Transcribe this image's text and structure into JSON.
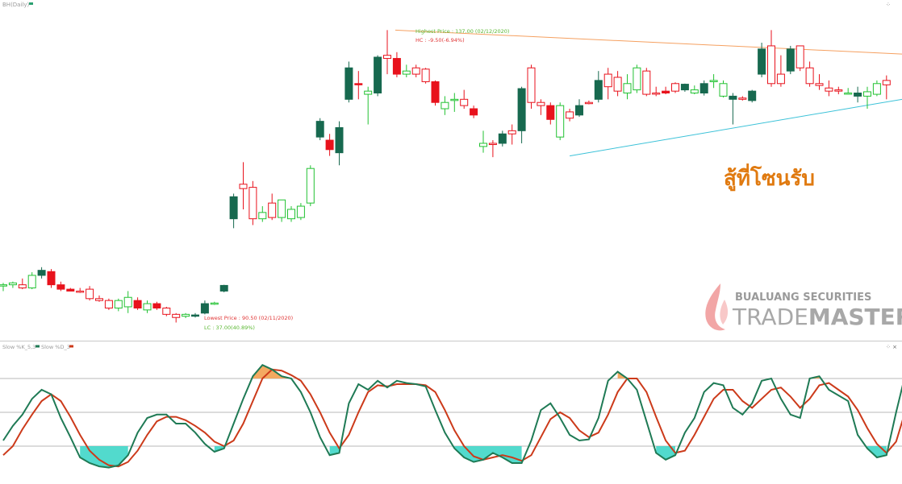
{
  "price_panel": {
    "title": "BH(Daily)",
    "highest_label": "Highest Price : 137.00 (02/12/2020)",
    "highest_change": "HC : -9.50(-6.94%)",
    "lowest_label": "Lowest Price : 90.50 (02/11/2020)",
    "lowest_change": "LC : 37.00(40.89%)",
    "annotation": "สู้ที่โซนรับ",
    "brand_top": "BUALUANG SECURITIES",
    "brand_main_a": "TRADE",
    "brand_main_b": "MASTER"
  },
  "stoch_panel": {
    "legend_k": "Slow %K_5,3",
    "legend_d": "Slow %D_3",
    "controls": "⁘ ×"
  },
  "colors": {
    "bull": "#17694f",
    "bull_hollow": "#22c232",
    "bear": "#e8121c",
    "bear_hollow": "#e8121c",
    "k_line": "#1f7a55",
    "d_line": "#cc3a1a",
    "overbought_fill": "#f2a050",
    "oversold_fill": "#3fd6c8",
    "resistance": "#f5a060",
    "support": "#3cc2d8",
    "annotation": "#e07a10"
  },
  "chart_data": [
    {
      "type": "candlestick",
      "title": "BH(Daily)",
      "ylim": [
        88,
        140
      ],
      "highest": 137.0,
      "lowest": 90.5,
      "candles": [
        {
          "o": 96.3,
          "h": 96.8,
          "l": 95.5,
          "c": 96.5,
          "s": "bull_hollow"
        },
        {
          "o": 96.5,
          "h": 97.0,
          "l": 96.0,
          "c": 96.8,
          "s": "bull_hollow"
        },
        {
          "o": 96.5,
          "h": 97.5,
          "l": 95.8,
          "c": 96.0,
          "s": "bear_hollow"
        },
        {
          "o": 96.0,
          "h": 98.5,
          "l": 95.8,
          "c": 98.0,
          "s": "bull_hollow"
        },
        {
          "o": 98.0,
          "h": 99.3,
          "l": 97.5,
          "c": 98.8,
          "s": "bull"
        },
        {
          "o": 98.6,
          "h": 99.0,
          "l": 96.0,
          "c": 96.5,
          "s": "bear"
        },
        {
          "o": 96.5,
          "h": 97.0,
          "l": 95.5,
          "c": 95.8,
          "s": "bear"
        },
        {
          "o": 95.8,
          "h": 96.0,
          "l": 95.5,
          "c": 95.5,
          "s": "bear"
        },
        {
          "o": 95.5,
          "h": 96.0,
          "l": 95.2,
          "c": 95.5,
          "s": "bear_hollow"
        },
        {
          "o": 95.8,
          "h": 96.3,
          "l": 94.0,
          "c": 94.3,
          "s": "bear_hollow"
        },
        {
          "o": 94.3,
          "h": 94.8,
          "l": 93.8,
          "c": 94.0,
          "s": "bear_hollow"
        },
        {
          "o": 94.0,
          "h": 94.3,
          "l": 92.5,
          "c": 92.8,
          "s": "bear_hollow"
        },
        {
          "o": 92.8,
          "h": 94.3,
          "l": 92.3,
          "c": 94.0,
          "s": "bull_hollow"
        },
        {
          "o": 93.0,
          "h": 95.5,
          "l": 92.0,
          "c": 94.5,
          "s": "bull_hollow"
        },
        {
          "o": 94.0,
          "h": 94.5,
          "l": 92.5,
          "c": 92.8,
          "s": "bear"
        },
        {
          "o": 92.5,
          "h": 94.0,
          "l": 92.0,
          "c": 93.5,
          "s": "bull_hollow"
        },
        {
          "o": 93.5,
          "h": 93.8,
          "l": 92.5,
          "c": 92.8,
          "s": "bear"
        },
        {
          "o": 92.8,
          "h": 93.0,
          "l": 91.5,
          "c": 91.8,
          "s": "bear_hollow"
        },
        {
          "o": 91.8,
          "h": 92.0,
          "l": 90.5,
          "c": 91.3,
          "s": "bear_hollow"
        },
        {
          "o": 91.5,
          "h": 92.0,
          "l": 91.2,
          "c": 91.8,
          "s": "bull_hollow"
        },
        {
          "o": 91.5,
          "h": 92.0,
          "l": 91.3,
          "c": 91.7,
          "s": "bull"
        },
        {
          "o": 92.0,
          "h": 94.0,
          "l": 91.8,
          "c": 93.5,
          "s": "bull"
        },
        {
          "o": 93.5,
          "h": 93.8,
          "l": 93.3,
          "c": 93.6,
          "s": "bull_hollow"
        },
        {
          "o": 95.5,
          "h": 96.5,
          "l": 95.3,
          "c": 96.4,
          "s": "bull"
        },
        {
          "o": 107.0,
          "h": 111.0,
          "l": 105.5,
          "c": 110.5,
          "s": "bull"
        },
        {
          "o": 111.8,
          "h": 116.0,
          "l": 108.5,
          "c": 112.5,
          "s": "bear_hollow"
        },
        {
          "o": 112.0,
          "h": 113.0,
          "l": 106.0,
          "c": 107.0,
          "s": "bear_hollow"
        },
        {
          "o": 107.0,
          "h": 109.0,
          "l": 106.5,
          "c": 108.0,
          "s": "bull_hollow"
        },
        {
          "o": 109.5,
          "h": 111.0,
          "l": 106.8,
          "c": 107.2,
          "s": "bear_hollow"
        },
        {
          "o": 107.2,
          "h": 110.0,
          "l": 106.5,
          "c": 110.0,
          "s": "bull_hollow"
        },
        {
          "o": 107.0,
          "h": 109.0,
          "l": 106.5,
          "c": 108.5,
          "s": "bull_hollow"
        },
        {
          "o": 109.0,
          "h": 109.5,
          "l": 106.8,
          "c": 107.2,
          "s": "bull_hollow"
        },
        {
          "o": 109.5,
          "h": 115.5,
          "l": 109.0,
          "c": 115.0,
          "s": "bull_hollow"
        },
        {
          "o": 120.0,
          "h": 123.0,
          "l": 119.5,
          "c": 122.5,
          "s": "bull"
        },
        {
          "o": 119.5,
          "h": 120.5,
          "l": 117.0,
          "c": 118.0,
          "s": "bear"
        },
        {
          "o": 117.5,
          "h": 122.5,
          "l": 115.5,
          "c": 121.5,
          "s": "bull"
        },
        {
          "o": 126.0,
          "h": 132.0,
          "l": 125.5,
          "c": 131.0,
          "s": "bull"
        },
        {
          "o": 128.5,
          "h": 130.5,
          "l": 126.0,
          "c": 128.3,
          "s": "bear"
        },
        {
          "o": 126.8,
          "h": 128.0,
          "l": 122.0,
          "c": 127.3,
          "s": "bull_hollow"
        },
        {
          "o": 127.0,
          "h": 133.0,
          "l": 126.5,
          "c": 132.7,
          "s": "bull"
        },
        {
          "o": 133.0,
          "h": 137.0,
          "l": 130.0,
          "c": 132.5,
          "s": "bear_hollow"
        },
        {
          "o": 132.5,
          "h": 133.5,
          "l": 129.5,
          "c": 130.0,
          "s": "bear"
        },
        {
          "o": 130.0,
          "h": 131.5,
          "l": 129.5,
          "c": 130.5,
          "s": "bull_hollow"
        },
        {
          "o": 131.0,
          "h": 131.5,
          "l": 129.5,
          "c": 130.0,
          "s": "bear_hollow"
        },
        {
          "o": 130.8,
          "h": 131.0,
          "l": 128.5,
          "c": 128.8,
          "s": "bear_hollow"
        },
        {
          "o": 128.8,
          "h": 129.0,
          "l": 125.0,
          "c": 125.5,
          "s": "bear"
        },
        {
          "o": 124.5,
          "h": 126.5,
          "l": 123.5,
          "c": 125.5,
          "s": "bull_hollow"
        },
        {
          "o": 126.0,
          "h": 127.0,
          "l": 124.0,
          "c": 126.0,
          "s": "bull_hollow"
        },
        {
          "o": 126.0,
          "h": 127.5,
          "l": 124.5,
          "c": 125.0,
          "s": "bear_hollow"
        },
        {
          "o": 124.5,
          "h": 125.0,
          "l": 123.0,
          "c": 123.5,
          "s": "bear"
        },
        {
          "o": 118.5,
          "h": 121.0,
          "l": 117.5,
          "c": 119.0,
          "s": "bull_hollow"
        },
        {
          "o": 119.0,
          "h": 119.5,
          "l": 116.8,
          "c": 118.8,
          "s": "bear_hollow"
        },
        {
          "o": 119.0,
          "h": 121.0,
          "l": 118.5,
          "c": 120.5,
          "s": "bull"
        },
        {
          "o": 120.5,
          "h": 122.0,
          "l": 118.8,
          "c": 121.0,
          "s": "bear_hollow"
        },
        {
          "o": 121.0,
          "h": 128.0,
          "l": 119.0,
          "c": 127.7,
          "s": "bull"
        },
        {
          "o": 131.0,
          "h": 131.5,
          "l": 124.5,
          "c": 125.5,
          "s": "bear_hollow"
        },
        {
          "o": 125.5,
          "h": 126.0,
          "l": 123.5,
          "c": 125.0,
          "s": "bear_hollow"
        },
        {
          "o": 125.0,
          "h": 125.5,
          "l": 122.0,
          "c": 122.8,
          "s": "bear"
        },
        {
          "o": 120.0,
          "h": 125.5,
          "l": 119.5,
          "c": 125.0,
          "s": "bull_hollow"
        },
        {
          "o": 123.0,
          "h": 124.5,
          "l": 122.5,
          "c": 124.0,
          "s": "bear_hollow"
        },
        {
          "o": 123.5,
          "h": 126.0,
          "l": 123.2,
          "c": 125.0,
          "s": "bull"
        },
        {
          "o": 125.5,
          "h": 125.8,
          "l": 125.2,
          "c": 125.5,
          "s": "bear_hollow"
        },
        {
          "o": 126.0,
          "h": 130.5,
          "l": 125.5,
          "c": 129.0,
          "s": "bull"
        },
        {
          "o": 130.0,
          "h": 131.0,
          "l": 126.0,
          "c": 128.0,
          "s": "bear_hollow"
        },
        {
          "o": 129.5,
          "h": 130.5,
          "l": 126.5,
          "c": 127.3,
          "s": "bear_hollow"
        },
        {
          "o": 127.0,
          "h": 130.0,
          "l": 126.0,
          "c": 128.5,
          "s": "bull_hollow"
        },
        {
          "o": 127.5,
          "h": 131.5,
          "l": 127.0,
          "c": 131.0,
          "s": "bull_hollow"
        },
        {
          "o": 130.5,
          "h": 131.0,
          "l": 126.5,
          "c": 126.8,
          "s": "bear_hollow"
        },
        {
          "o": 127.0,
          "h": 128.0,
          "l": 126.5,
          "c": 127.0,
          "s": "bear_hollow"
        },
        {
          "o": 127.0,
          "h": 128.0,
          "l": 126.8,
          "c": 127.3,
          "s": "bear"
        },
        {
          "o": 127.3,
          "h": 128.7,
          "l": 127.0,
          "c": 128.5,
          "s": "bear_hollow"
        },
        {
          "o": 127.5,
          "h": 128.5,
          "l": 127.2,
          "c": 128.4,
          "s": "bull"
        },
        {
          "o": 127.5,
          "h": 128.2,
          "l": 126.8,
          "c": 127.0,
          "s": "bull_hollow"
        },
        {
          "o": 127.0,
          "h": 129.0,
          "l": 126.6,
          "c": 128.5,
          "s": "bull"
        },
        {
          "o": 129.0,
          "h": 130.0,
          "l": 127.8,
          "c": 128.8,
          "s": "bull_hollow"
        },
        {
          "o": 128.5,
          "h": 129.0,
          "l": 126.3,
          "c": 126.5,
          "s": "bull_hollow"
        },
        {
          "o": 126.5,
          "h": 127.0,
          "l": 122.0,
          "c": 126.0,
          "s": "bull"
        },
        {
          "o": 126.0,
          "h": 126.5,
          "l": 125.8,
          "c": 126.2,
          "s": "bear_hollow"
        },
        {
          "o": 125.8,
          "h": 127.5,
          "l": 125.5,
          "c": 127.3,
          "s": "bull"
        },
        {
          "o": 130.0,
          "h": 135.0,
          "l": 129.5,
          "c": 134.0,
          "s": "bull"
        },
        {
          "o": 134.5,
          "h": 137.0,
          "l": 128.0,
          "c": 128.5,
          "s": "bear_hollow"
        },
        {
          "o": 128.5,
          "h": 133.0,
          "l": 128.0,
          "c": 130.0,
          "s": "bear_hollow"
        },
        {
          "o": 130.5,
          "h": 134.5,
          "l": 130.0,
          "c": 134.0,
          "s": "bull"
        },
        {
          "o": 134.5,
          "h": 134.5,
          "l": 130.5,
          "c": 131.0,
          "s": "bear_hollow"
        },
        {
          "o": 131.0,
          "h": 132.0,
          "l": 128.0,
          "c": 128.5,
          "s": "bear_hollow"
        },
        {
          "o": 128.5,
          "h": 130.0,
          "l": 127.5,
          "c": 128.2,
          "s": "bear_hollow"
        },
        {
          "o": 127.8,
          "h": 129.0,
          "l": 126.5,
          "c": 127.3,
          "s": "bear_hollow"
        },
        {
          "o": 127.5,
          "h": 128.0,
          "l": 126.8,
          "c": 127.3,
          "s": "bear_hollow"
        },
        {
          "o": 127.0,
          "h": 127.8,
          "l": 126.8,
          "c": 127.0,
          "s": "bull_hollow"
        },
        {
          "o": 126.5,
          "h": 128.0,
          "l": 125.5,
          "c": 127.0,
          "s": "bull"
        },
        {
          "o": 126.5,
          "h": 128.0,
          "l": 124.5,
          "c": 127.2,
          "s": "bull_hollow"
        },
        {
          "o": 126.8,
          "h": 129.0,
          "l": 126.5,
          "c": 128.5,
          "s": "bull_hollow"
        },
        {
          "o": 129.0,
          "h": 129.8,
          "l": 126.0,
          "c": 128.3,
          "s": "bear_hollow"
        }
      ],
      "resistance_line": {
        "from": {
          "i": 41,
          "price": 137.0
        },
        "to": {
          "i": 93,
          "price": 133.2
        }
      },
      "support_line": {
        "from": {
          "i": 59,
          "price": 117.0
        },
        "to": {
          "i": 93,
          "price": 126.0
        }
      }
    },
    {
      "type": "line",
      "title": "Slow %K_5,3 / Slow %D_3",
      "ylim": [
        0,
        100
      ],
      "levels": [
        80,
        50,
        20
      ],
      "series": [
        {
          "name": "Slow %K_5,3",
          "color_key": "k_line",
          "values": [
            25,
            38,
            48,
            62,
            70,
            66,
            45,
            28,
            10,
            5,
            2,
            1,
            3,
            12,
            32,
            45,
            48,
            48,
            40,
            40,
            32,
            22,
            15,
            18,
            40,
            62,
            82,
            92,
            88,
            82,
            80,
            68,
            50,
            28,
            12,
            14,
            58,
            75,
            70,
            78,
            72,
            78,
            76,
            75,
            73,
            52,
            32,
            18,
            10,
            6,
            8,
            14,
            10,
            5,
            5,
            25,
            52,
            58,
            45,
            30,
            25,
            26,
            45,
            78,
            86,
            80,
            70,
            42,
            14,
            8,
            12,
            32,
            45,
            68,
            76,
            74,
            54,
            48,
            58,
            78,
            80,
            62,
            48,
            45,
            80,
            82,
            70,
            65,
            60,
            30,
            18,
            10,
            12,
            50,
            85
          ]
        },
        {
          "name": "Slow %D_3",
          "color_key": "d_line",
          "values": [
            12,
            20,
            35,
            48,
            60,
            66,
            60,
            46,
            30,
            16,
            8,
            3,
            2,
            6,
            16,
            30,
            42,
            46,
            46,
            43,
            38,
            32,
            24,
            20,
            25,
            40,
            60,
            80,
            88,
            87,
            83,
            78,
            66,
            50,
            32,
            18,
            30,
            50,
            68,
            74,
            73,
            75,
            75,
            75,
            74,
            68,
            52,
            34,
            20,
            11,
            8,
            10,
            12,
            10,
            7,
            12,
            28,
            44,
            50,
            45,
            34,
            28,
            32,
            48,
            68,
            80,
            80,
            68,
            46,
            25,
            14,
            16,
            30,
            46,
            62,
            70,
            70,
            60,
            54,
            62,
            70,
            72,
            64,
            54,
            62,
            74,
            76,
            70,
            64,
            52,
            36,
            22,
            14,
            24,
            52
          ]
        }
      ],
      "shading": {
        "overbought_above": 80,
        "oversold_below": 20
      }
    }
  ]
}
